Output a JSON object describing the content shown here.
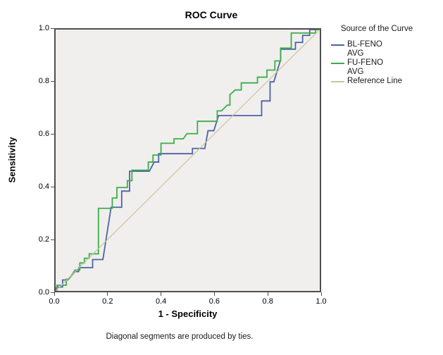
{
  "title": "ROC Curve",
  "axes": {
    "x_label": "1 - Specificity",
    "y_label": "Sensitivity",
    "x_ticks": [
      "0.0",
      "0.2",
      "0.4",
      "0.6",
      "0.8",
      "1.0"
    ],
    "y_ticks": [
      "0.0",
      "0.2",
      "0.4",
      "0.6",
      "0.8",
      "1.0"
    ]
  },
  "legend": {
    "title": "Source of the Curve",
    "items": [
      {
        "lines": [
          "BL-FENO",
          "AVG"
        ],
        "color": "#4d61a8"
      },
      {
        "lines": [
          "FU-FENO",
          "AVG"
        ],
        "color": "#3aad4a"
      },
      {
        "lines": [
          "Reference Line"
        ],
        "color": "#ccc39b"
      }
    ]
  },
  "footnote": "Diagonal segments are produced by ties.",
  "colors": {
    "plot_background": "#f0efed",
    "plot_border": "#4f4f4f",
    "bl_feno": "#4d61a8",
    "fu_feno": "#3aad4a",
    "reference": "#ccc39b"
  },
  "chart_data": {
    "type": "line",
    "title": "ROC Curve",
    "xlabel": "1 - Specificity",
    "ylabel": "Sensitivity",
    "xlim": [
      0,
      1
    ],
    "ylim": [
      0,
      1
    ],
    "grid": false,
    "legend_position": "right",
    "legend_title": "Source of the Curve",
    "series": [
      {
        "name": "BL-FENO AVG",
        "color": "#4d61a8",
        "width": 1.8,
        "points": [
          [
            0,
            0
          ],
          [
            0.004,
            0.015
          ],
          [
            0.026,
            0.015
          ],
          [
            0.026,
            0.042
          ],
          [
            0.045,
            0.042
          ],
          [
            0.074,
            0.074
          ],
          [
            0.087,
            0.074
          ],
          [
            0.087,
            0.089
          ],
          [
            0.14,
            0.089
          ],
          [
            0.14,
            0.12
          ],
          [
            0.179,
            0.12
          ],
          [
            0.21,
            0.32
          ],
          [
            0.25,
            0.32
          ],
          [
            0.25,
            0.382
          ],
          [
            0.28,
            0.382
          ],
          [
            0.28,
            0.458
          ],
          [
            0.355,
            0.458
          ],
          [
            0.373,
            0.493
          ],
          [
            0.39,
            0.493
          ],
          [
            0.39,
            0.525
          ],
          [
            0.518,
            0.525
          ],
          [
            0.518,
            0.545
          ],
          [
            0.565,
            0.545
          ],
          [
            0.577,
            0.613
          ],
          [
            0.599,
            0.613
          ],
          [
            0.617,
            0.671
          ],
          [
            0.78,
            0.671
          ],
          [
            0.78,
            0.727
          ],
          [
            0.812,
            0.727
          ],
          [
            0.812,
            0.8
          ],
          [
            0.826,
            0.8
          ],
          [
            0.852,
            0.885
          ],
          [
            0.852,
            0.925
          ],
          [
            0.908,
            0.925
          ],
          [
            0.908,
            0.951
          ],
          [
            0.935,
            0.951
          ],
          [
            0.935,
            0.978
          ],
          [
            0.962,
            0.978
          ],
          [
            0.962,
            1.0
          ],
          [
            1.0,
            1.0
          ]
        ]
      },
      {
        "name": "FU-FENO AVG",
        "color": "#3aad4a",
        "width": 1.8,
        "points": [
          [
            0,
            0
          ],
          [
            0.005,
            0
          ],
          [
            0.005,
            0.022
          ],
          [
            0.04,
            0.022
          ],
          [
            0.04,
            0.045
          ],
          [
            0.05,
            0.045
          ],
          [
            0.074,
            0.08
          ],
          [
            0.0915,
            0.08
          ],
          [
            0.0915,
            0.107
          ],
          [
            0.109,
            0.107
          ],
          [
            0.109,
            0.125
          ],
          [
            0.127,
            0.125
          ],
          [
            0.127,
            0.142
          ],
          [
            0.162,
            0.142
          ],
          [
            0.162,
            0.316
          ],
          [
            0.2145,
            0.316
          ],
          [
            0.2145,
            0.3555
          ],
          [
            0.232,
            0.3555
          ],
          [
            0.232,
            0.3955
          ],
          [
            0.2715,
            0.3955
          ],
          [
            0.2715,
            0.422
          ],
          [
            0.289,
            0.422
          ],
          [
            0.289,
            0.462
          ],
          [
            0.351,
            0.462
          ],
          [
            0.351,
            0.493
          ],
          [
            0.3685,
            0.493
          ],
          [
            0.3685,
            0.52
          ],
          [
            0.399,
            0.52
          ],
          [
            0.399,
            0.565
          ],
          [
            0.448,
            0.565
          ],
          [
            0.448,
            0.582
          ],
          [
            0.483,
            0.582
          ],
          [
            0.497,
            0.602
          ],
          [
            0.537,
            0.602
          ],
          [
            0.537,
            0.649
          ],
          [
            0.612,
            0.649
          ],
          [
            0.612,
            0.689
          ],
          [
            0.628,
            0.689
          ],
          [
            0.65,
            0.711
          ],
          [
            0.66,
            0.711
          ],
          [
            0.66,
            0.751
          ],
          [
            0.68,
            0.769
          ],
          [
            0.703,
            0.769
          ],
          [
            0.703,
            0.796
          ],
          [
            0.764,
            0.796
          ],
          [
            0.764,
            0.818
          ],
          [
            0.8,
            0.818
          ],
          [
            0.8,
            0.845
          ],
          [
            0.83,
            0.845
          ],
          [
            0.83,
            0.88
          ],
          [
            0.852,
            0.88
          ],
          [
            0.852,
            0.929
          ],
          [
            0.892,
            0.929
          ],
          [
            0.892,
            0.987
          ],
          [
            0.984,
            0.987
          ],
          [
            0.984,
            1.0
          ],
          [
            1.0,
            1.0
          ]
        ]
      },
      {
        "name": "Reference Line",
        "color": "#ccc39b",
        "width": 1.2,
        "points": [
          [
            0,
            0
          ],
          [
            1,
            1
          ]
        ]
      }
    ]
  }
}
